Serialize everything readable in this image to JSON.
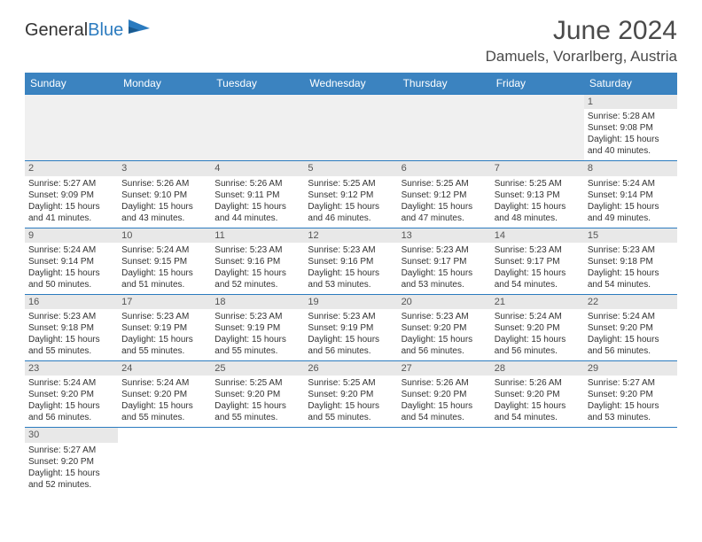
{
  "logo": {
    "part1": "General",
    "part2": "Blue"
  },
  "title": "June 2024",
  "location": "Damuels, Vorarlberg, Austria",
  "colors": {
    "header_bg": "#3b83c0",
    "header_text": "#ffffff",
    "rule": "#2b7bbf",
    "daynum_bg": "#e8e8e8",
    "empty_bg": "#f0f0f0",
    "text": "#333333"
  },
  "weekdays": [
    "Sunday",
    "Monday",
    "Tuesday",
    "Wednesday",
    "Thursday",
    "Friday",
    "Saturday"
  ],
  "weeks": [
    [
      null,
      null,
      null,
      null,
      null,
      null,
      {
        "d": "1",
        "rise": "5:28 AM",
        "set": "9:08 PM",
        "h": "15",
        "m": "40"
      }
    ],
    [
      {
        "d": "2",
        "rise": "5:27 AM",
        "set": "9:09 PM",
        "h": "15",
        "m": "41"
      },
      {
        "d": "3",
        "rise": "5:26 AM",
        "set": "9:10 PM",
        "h": "15",
        "m": "43"
      },
      {
        "d": "4",
        "rise": "5:26 AM",
        "set": "9:11 PM",
        "h": "15",
        "m": "44"
      },
      {
        "d": "5",
        "rise": "5:25 AM",
        "set": "9:12 PM",
        "h": "15",
        "m": "46"
      },
      {
        "d": "6",
        "rise": "5:25 AM",
        "set": "9:12 PM",
        "h": "15",
        "m": "47"
      },
      {
        "d": "7",
        "rise": "5:25 AM",
        "set": "9:13 PM",
        "h": "15",
        "m": "48"
      },
      {
        "d": "8",
        "rise": "5:24 AM",
        "set": "9:14 PM",
        "h": "15",
        "m": "49"
      }
    ],
    [
      {
        "d": "9",
        "rise": "5:24 AM",
        "set": "9:14 PM",
        "h": "15",
        "m": "50"
      },
      {
        "d": "10",
        "rise": "5:24 AM",
        "set": "9:15 PM",
        "h": "15",
        "m": "51"
      },
      {
        "d": "11",
        "rise": "5:23 AM",
        "set": "9:16 PM",
        "h": "15",
        "m": "52"
      },
      {
        "d": "12",
        "rise": "5:23 AM",
        "set": "9:16 PM",
        "h": "15",
        "m": "53"
      },
      {
        "d": "13",
        "rise": "5:23 AM",
        "set": "9:17 PM",
        "h": "15",
        "m": "53"
      },
      {
        "d": "14",
        "rise": "5:23 AM",
        "set": "9:17 PM",
        "h": "15",
        "m": "54"
      },
      {
        "d": "15",
        "rise": "5:23 AM",
        "set": "9:18 PM",
        "h": "15",
        "m": "54"
      }
    ],
    [
      {
        "d": "16",
        "rise": "5:23 AM",
        "set": "9:18 PM",
        "h": "15",
        "m": "55"
      },
      {
        "d": "17",
        "rise": "5:23 AM",
        "set": "9:19 PM",
        "h": "15",
        "m": "55"
      },
      {
        "d": "18",
        "rise": "5:23 AM",
        "set": "9:19 PM",
        "h": "15",
        "m": "55"
      },
      {
        "d": "19",
        "rise": "5:23 AM",
        "set": "9:19 PM",
        "h": "15",
        "m": "56"
      },
      {
        "d": "20",
        "rise": "5:23 AM",
        "set": "9:20 PM",
        "h": "15",
        "m": "56"
      },
      {
        "d": "21",
        "rise": "5:24 AM",
        "set": "9:20 PM",
        "h": "15",
        "m": "56"
      },
      {
        "d": "22",
        "rise": "5:24 AM",
        "set": "9:20 PM",
        "h": "15",
        "m": "56"
      }
    ],
    [
      {
        "d": "23",
        "rise": "5:24 AM",
        "set": "9:20 PM",
        "h": "15",
        "m": "56"
      },
      {
        "d": "24",
        "rise": "5:24 AM",
        "set": "9:20 PM",
        "h": "15",
        "m": "55"
      },
      {
        "d": "25",
        "rise": "5:25 AM",
        "set": "9:20 PM",
        "h": "15",
        "m": "55"
      },
      {
        "d": "26",
        "rise": "5:25 AM",
        "set": "9:20 PM",
        "h": "15",
        "m": "55"
      },
      {
        "d": "27",
        "rise": "5:26 AM",
        "set": "9:20 PM",
        "h": "15",
        "m": "54"
      },
      {
        "d": "28",
        "rise": "5:26 AM",
        "set": "9:20 PM",
        "h": "15",
        "m": "54"
      },
      {
        "d": "29",
        "rise": "5:27 AM",
        "set": "9:20 PM",
        "h": "15",
        "m": "53"
      }
    ],
    [
      {
        "d": "30",
        "rise": "5:27 AM",
        "set": "9:20 PM",
        "h": "15",
        "m": "52"
      },
      null,
      null,
      null,
      null,
      null,
      null
    ]
  ],
  "labels": {
    "sunrise": "Sunrise: ",
    "sunset": "Sunset: ",
    "daylight_pre": "Daylight: ",
    "hours": " hours",
    "and": "and ",
    "minutes": " minutes."
  }
}
